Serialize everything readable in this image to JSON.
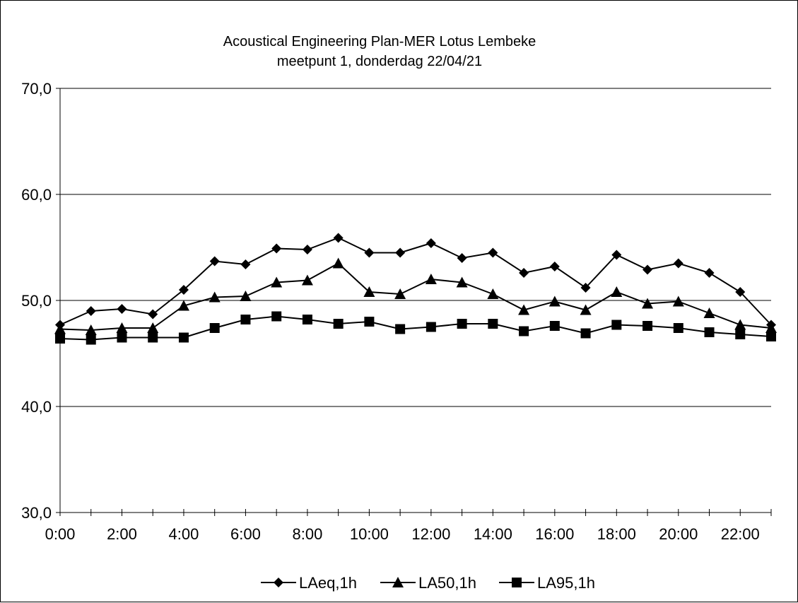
{
  "chart_data": {
    "type": "line",
    "title": "Acoustical Engineering Plan-MER Lotus Lembeke",
    "subtitle": "meetpunt 1, donderdag 22/04/21",
    "xlabel": "",
    "ylabel": "",
    "ylim": [
      30,
      70
    ],
    "yticks": [
      "30,0",
      "40,0",
      "50,0",
      "60,0",
      "70,0"
    ],
    "x": [
      0,
      1,
      2,
      3,
      4,
      5,
      6,
      7,
      8,
      9,
      10,
      11,
      12,
      13,
      14,
      15,
      16,
      17,
      18,
      19,
      20,
      21,
      22,
      23
    ],
    "xtick_labels": [
      "0:00",
      "2:00",
      "4:00",
      "6:00",
      "8:00",
      "10:00",
      "12:00",
      "14:00",
      "16:00",
      "18:00",
      "20:00",
      "22:00"
    ],
    "grid": true,
    "legend_position": "bottom",
    "series": [
      {
        "name": "LAeq,1h",
        "marker": "diamond",
        "values": [
          47.7,
          49.0,
          49.2,
          48.7,
          51.0,
          53.7,
          53.4,
          54.9,
          54.8,
          55.9,
          54.5,
          54.5,
          55.4,
          54.0,
          54.5,
          52.6,
          53.2,
          51.2,
          54.3,
          52.9,
          53.5,
          52.6,
          50.8,
          47.7
        ]
      },
      {
        "name": "LA50,1h",
        "marker": "triangle",
        "values": [
          47.3,
          47.2,
          47.4,
          47.4,
          49.5,
          50.3,
          50.4,
          51.7,
          51.9,
          53.5,
          50.8,
          50.6,
          52.0,
          51.7,
          50.6,
          49.1,
          49.9,
          49.1,
          50.8,
          49.7,
          49.9,
          48.8,
          47.7,
          47.4
        ]
      },
      {
        "name": "LA95,1h",
        "marker": "square",
        "values": [
          46.4,
          46.3,
          46.5,
          46.5,
          46.5,
          47.4,
          48.2,
          48.5,
          48.2,
          47.8,
          48.0,
          47.3,
          47.5,
          47.8,
          47.8,
          47.1,
          47.6,
          46.9,
          47.7,
          47.6,
          47.4,
          47.0,
          46.8,
          46.6
        ]
      }
    ]
  }
}
